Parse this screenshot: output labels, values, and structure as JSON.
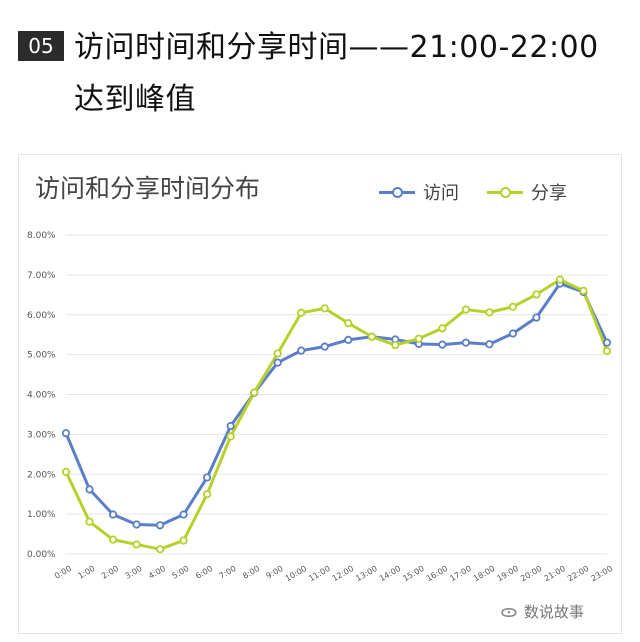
{
  "header": {
    "number": "05",
    "headline": "访问时间和分享时间——21:00-22:00达到峰值"
  },
  "watermark": {
    "icon": "wechat-icon",
    "text": "数说故事"
  },
  "colors": {
    "visit": "#5b7ecb",
    "share": "#b5d12a",
    "grid": "#e6e6e6"
  },
  "chart_data": {
    "type": "line",
    "title": "访问和分享时间分布",
    "xlabel": "",
    "ylabel": "",
    "ylim": [
      0,
      8
    ],
    "y_unit": "%",
    "y_ticks": [
      "0.00%",
      "1.00%",
      "2.00%",
      "3.00%",
      "4.00%",
      "5.00%",
      "6.00%",
      "7.00%",
      "8.00%"
    ],
    "grid": true,
    "legend_position": "top-right",
    "categories": [
      "0:00",
      "1:00",
      "2:00",
      "3:00",
      "4:00",
      "5:00",
      "6:00",
      "7:00",
      "8:00",
      "9:00",
      "10:00",
      "11:00",
      "12:00",
      "13:00",
      "14:00",
      "15:00",
      "16:00",
      "17:00",
      "18:00",
      "19:00",
      "20:00",
      "21:00",
      "22:00",
      "23:00"
    ],
    "series": [
      {
        "name": "访问",
        "values": [
          3.03,
          1.62,
          0.99,
          0.74,
          0.72,
          0.99,
          1.92,
          3.21,
          4.04,
          4.8,
          5.1,
          5.2,
          5.37,
          5.45,
          5.38,
          5.27,
          5.25,
          5.3,
          5.26,
          5.53,
          5.93,
          6.78,
          6.57,
          5.3
        ]
      },
      {
        "name": "分享",
        "values": [
          2.06,
          0.81,
          0.36,
          0.24,
          0.12,
          0.34,
          1.5,
          2.95,
          4.05,
          5.03,
          6.05,
          6.16,
          5.79,
          5.45,
          5.24,
          5.4,
          5.66,
          6.13,
          6.06,
          6.2,
          6.51,
          6.88,
          6.6,
          5.09
        ]
      }
    ]
  }
}
